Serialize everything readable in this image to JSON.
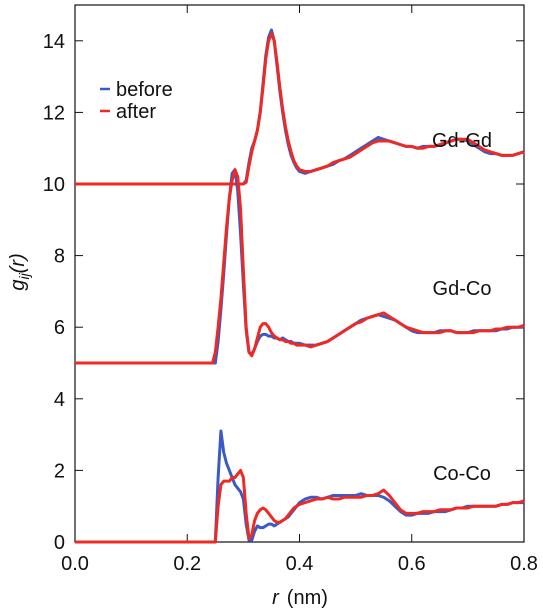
{
  "chart_data": {
    "type": "line",
    "xlabel": {
      "var": "r",
      "unit": "(nm)"
    },
    "ylabel": {
      "base": "g",
      "sub": "ij",
      "rest": "(r)"
    },
    "annotations": [
      "Gd-Gd",
      "Gd-Co",
      "Co-Co"
    ],
    "xlim": [
      0,
      0.8
    ],
    "xticks": [
      {
        "value": 0,
        "label": "0.0"
      },
      0.2,
      0.4,
      0.6,
      0.8
    ],
    "ylim": [
      0,
      15
    ],
    "yticks": [
      0,
      2,
      4,
      6,
      8,
      10,
      12,
      14
    ],
    "x": [
      0,
      0.1,
      0.2,
      0.24,
      0.245,
      0.25,
      0.255,
      0.26,
      0.265,
      0.27,
      0.275,
      0.28,
      0.285,
      0.29,
      0.295,
      0.3,
      0.305,
      0.31,
      0.315,
      0.32,
      0.325,
      0.33,
      0.335,
      0.34,
      0.345,
      0.35,
      0.355,
      0.36,
      0.365,
      0.37,
      0.375,
      0.38,
      0.385,
      0.39,
      0.395,
      0.4,
      0.41,
      0.42,
      0.43,
      0.44,
      0.45,
      0.46,
      0.47,
      0.48,
      0.49,
      0.5,
      0.51,
      0.52,
      0.53,
      0.54,
      0.55,
      0.56,
      0.57,
      0.58,
      0.59,
      0.6,
      0.61,
      0.62,
      0.63,
      0.64,
      0.65,
      0.66,
      0.67,
      0.68,
      0.69,
      0.7,
      0.71,
      0.72,
      0.73,
      0.74,
      0.75,
      0.76,
      0.77,
      0.78,
      0.79,
      0.8
    ],
    "series": [
      {
        "name": "before",
        "color": "#3a5bc7",
        "values": [
          10,
          10,
          10,
          10,
          10,
          10,
          10,
          10,
          10,
          10,
          10,
          10,
          10,
          10,
          10,
          10,
          10.1,
          10.6,
          11.0,
          11.2,
          11.5,
          12.0,
          12.8,
          13.6,
          14.1,
          14.3,
          14.0,
          13.3,
          12.6,
          12.0,
          11.5,
          11.1,
          10.8,
          10.6,
          10.45,
          10.35,
          10.3,
          10.35,
          10.4,
          10.45,
          10.5,
          10.55,
          10.65,
          10.7,
          10.8,
          10.9,
          11.0,
          11.1,
          11.2,
          11.3,
          11.25,
          11.2,
          11.15,
          11.1,
          11.05,
          11.05,
          11.0,
          11.05,
          11.05,
          11.05,
          11.1,
          11.15,
          11.2,
          11.25,
          11.25,
          11.2,
          11.1,
          11.0,
          10.9,
          10.85,
          10.85,
          10.8,
          10.8,
          10.8,
          10.85,
          10.9
        ]
      },
      {
        "name": "after",
        "color": "#ee2a24",
        "values": [
          10,
          10,
          10,
          10,
          10,
          10,
          10,
          10,
          10,
          10,
          10,
          10,
          10,
          10,
          10,
          10,
          10.05,
          10.5,
          10.9,
          11.2,
          11.5,
          12.0,
          12.7,
          13.5,
          14.0,
          14.2,
          14.0,
          13.4,
          12.7,
          12.1,
          11.6,
          11.2,
          10.9,
          10.65,
          10.5,
          10.4,
          10.35,
          10.35,
          10.4,
          10.45,
          10.5,
          10.6,
          10.65,
          10.7,
          10.75,
          10.85,
          10.95,
          11.05,
          11.15,
          11.2,
          11.2,
          11.2,
          11.15,
          11.1,
          11.05,
          11.05,
          11.0,
          11.0,
          11.05,
          11.05,
          11.1,
          11.15,
          11.2,
          11.25,
          11.25,
          11.25,
          11.15,
          11.05,
          10.95,
          10.9,
          10.85,
          10.8,
          10.8,
          10.8,
          10.85,
          10.9
        ]
      },
      {
        "name": "before",
        "color": "#3a5bc7",
        "values": [
          5,
          5,
          5,
          5,
          5,
          5,
          5.6,
          6.5,
          7.5,
          8.6,
          9.6,
          10.3,
          10.4,
          9.8,
          8.6,
          7.2,
          5.9,
          5.3,
          5.25,
          5.4,
          5.6,
          5.75,
          5.8,
          5.8,
          5.75,
          5.75,
          5.7,
          5.7,
          5.65,
          5.7,
          5.65,
          5.6,
          5.6,
          5.55,
          5.55,
          5.55,
          5.5,
          5.5,
          5.5,
          5.55,
          5.6,
          5.7,
          5.8,
          5.9,
          6.0,
          6.1,
          6.2,
          6.25,
          6.3,
          6.35,
          6.3,
          6.25,
          6.2,
          6.1,
          6.0,
          5.9,
          5.85,
          5.85,
          5.85,
          5.85,
          5.9,
          5.9,
          5.9,
          5.85,
          5.85,
          5.85,
          5.9,
          5.9,
          5.9,
          5.9,
          5.9,
          5.95,
          5.95,
          6.0,
          6.0,
          6.0
        ]
      },
      {
        "name": "after",
        "color": "#ee2a24",
        "values": [
          5,
          5,
          5,
          5,
          5,
          5.3,
          6.0,
          6.8,
          7.8,
          8.8,
          9.6,
          10.1,
          10.4,
          10.2,
          9.3,
          7.6,
          6.0,
          5.3,
          5.2,
          5.4,
          5.7,
          6.0,
          6.1,
          6.1,
          6.0,
          5.85,
          5.75,
          5.7,
          5.65,
          5.65,
          5.6,
          5.6,
          5.55,
          5.55,
          5.5,
          5.5,
          5.5,
          5.45,
          5.5,
          5.55,
          5.6,
          5.7,
          5.8,
          5.9,
          6.0,
          6.1,
          6.15,
          6.25,
          6.3,
          6.35,
          6.4,
          6.3,
          6.2,
          6.1,
          6.0,
          5.95,
          5.9,
          5.85,
          5.85,
          5.85,
          5.85,
          5.9,
          5.9,
          5.85,
          5.85,
          5.85,
          5.85,
          5.9,
          5.9,
          5.9,
          5.95,
          5.95,
          6.0,
          6.0,
          6.0,
          6.05
        ]
      },
      {
        "name": "before",
        "color": "#3a5bc7",
        "values": [
          0,
          0,
          0,
          0,
          0,
          0,
          1.8,
          3.1,
          2.5,
          2.2,
          2.0,
          1.8,
          1.6,
          1.5,
          1.4,
          1.2,
          0.5,
          0.05,
          0.05,
          0.3,
          0.45,
          0.4,
          0.4,
          0.45,
          0.5,
          0.5,
          0.45,
          0.5,
          0.55,
          0.6,
          0.65,
          0.7,
          0.8,
          0.9,
          1.0,
          1.1,
          1.2,
          1.25,
          1.25,
          1.2,
          1.25,
          1.3,
          1.3,
          1.3,
          1.3,
          1.3,
          1.35,
          1.3,
          1.3,
          1.3,
          1.25,
          1.15,
          1.0,
          0.85,
          0.75,
          0.75,
          0.8,
          0.8,
          0.8,
          0.85,
          0.85,
          0.85,
          0.9,
          0.95,
          0.95,
          1.0,
          1.0,
          1.0,
          1.0,
          1.0,
          1.0,
          1.05,
          1.05,
          1.1,
          1.1,
          1.1
        ]
      },
      {
        "name": "after",
        "color": "#ee2a24",
        "values": [
          0,
          0,
          0,
          0,
          0,
          0,
          1.0,
          1.6,
          1.7,
          1.7,
          1.7,
          1.8,
          1.8,
          1.9,
          2.0,
          1.8,
          0.8,
          0.1,
          0.2,
          0.6,
          0.8,
          0.9,
          0.95,
          0.9,
          0.8,
          0.7,
          0.6,
          0.55,
          0.55,
          0.6,
          0.65,
          0.75,
          0.85,
          0.95,
          1.0,
          1.05,
          1.1,
          1.15,
          1.2,
          1.2,
          1.25,
          1.2,
          1.2,
          1.25,
          1.25,
          1.25,
          1.25,
          1.3,
          1.3,
          1.35,
          1.45,
          1.3,
          1.1,
          0.9,
          0.8,
          0.8,
          0.8,
          0.85,
          0.85,
          0.85,
          0.9,
          0.9,
          0.9,
          0.95,
          0.95,
          0.95,
          1.0,
          1.0,
          1.0,
          1.0,
          1.0,
          1.05,
          1.05,
          1.1,
          1.1,
          1.15
        ]
      }
    ]
  }
}
